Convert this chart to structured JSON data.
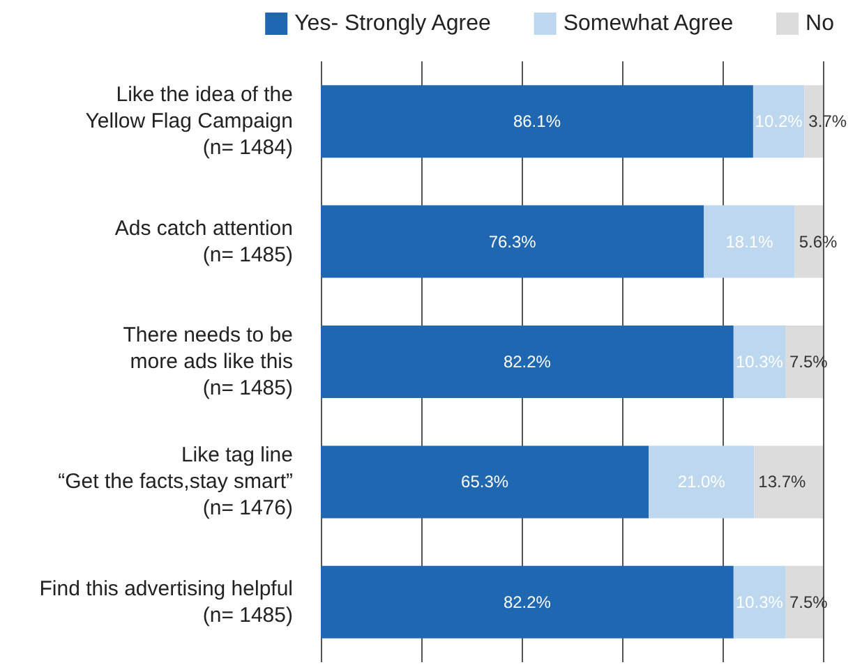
{
  "chart_data": {
    "type": "bar",
    "orientation": "horizontal",
    "stacked": true,
    "categories": [
      "Like the idea of the\nYellow Flag Campaign\n(n= 1484)",
      "Ads catch attention\n(n= 1485)",
      "There needs to be\nmore ads like this\n(n= 1485)",
      "Like tag line\n“Get the facts,stay smart”\n(n= 1476)",
      "Find this advertising helpful\n(n= 1485)"
    ],
    "series": [
      {
        "name": "Yes- Strongly Agree",
        "color": "#1f67b1",
        "values": [
          86.1,
          76.3,
          82.2,
          65.3,
          82.2
        ],
        "value_labels": [
          "86.1%",
          "76.3%",
          "82.2%",
          "65.3%",
          "82.2%"
        ]
      },
      {
        "name": "Somewhat Agree",
        "color": "#bdd7ee",
        "values": [
          10.2,
          18.1,
          10.3,
          21.0,
          10.3
        ],
        "value_labels": [
          "10.2%",
          "18.1%",
          "10.3%",
          "21.0%",
          "10.3%"
        ]
      },
      {
        "name": "No",
        "color": "#dcdcdc",
        "values": [
          3.7,
          5.6,
          7.5,
          13.7,
          7.5
        ],
        "value_labels": [
          "3.7%",
          "5.6%",
          "7.5%",
          "13.7%",
          "7.5%"
        ]
      }
    ],
    "tick_labels": "y",
    "grid": "x",
    "legend": "top right"
  }
}
